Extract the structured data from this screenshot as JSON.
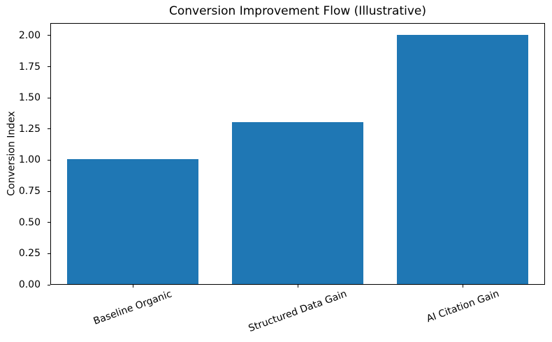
{
  "chart_data": {
    "type": "bar",
    "title": "Conversion Improvement Flow (Illustrative)",
    "ylabel": "Conversion Index",
    "xlabel": "",
    "categories": [
      "Baseline Organic",
      "Structured Data Gain",
      "AI Citation Gain"
    ],
    "values": [
      1.0,
      1.3,
      2.0
    ],
    "ylim": [
      0,
      2.1
    ],
    "yticks": [
      0,
      0.25,
      0.5,
      0.75,
      1.0,
      1.25,
      1.5,
      1.75,
      2.0
    ],
    "ytick_labels": [
      "0.00",
      "0.25",
      "0.50",
      "0.75",
      "1.00",
      "1.25",
      "1.50",
      "1.75",
      "2.00"
    ],
    "bar_color": "#1f77b4",
    "background": "#ffffff",
    "spine_color": "#000000",
    "text_color": "#000000",
    "bar_width_ratio": 0.8,
    "xtick_rotation_deg": 20,
    "grid": false,
    "legend_position": "none"
  }
}
